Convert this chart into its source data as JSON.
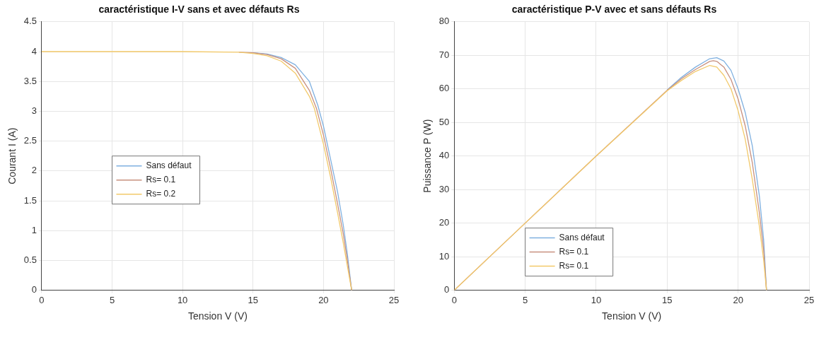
{
  "chart_data": [
    {
      "type": "line",
      "title": "caractéristique I-V sans et avec défauts Rs",
      "xlabel": "Tension V (V)",
      "ylabel": "Courant I (A)",
      "xlim": [
        0,
        25
      ],
      "xticks": [
        0,
        5,
        10,
        15,
        20,
        25
      ],
      "ylim": [
        0,
        4.5
      ],
      "yticks": [
        0,
        0.5,
        1,
        1.5,
        2,
        2.5,
        3,
        3.5,
        4,
        4.5
      ],
      "grid": true,
      "legend": "center left",
      "series": [
        {
          "name": "Sans défaut",
          "color": "#7fb0e0",
          "x": [
            15,
            16,
            17,
            18,
            19,
            19.6,
            20,
            20.5,
            21,
            21.4,
            21.7,
            22
          ],
          "values": [
            3.98,
            3.96,
            3.9,
            3.78,
            3.5,
            3.1,
            2.75,
            2.2,
            1.65,
            1.1,
            0.6,
            0
          ]
        },
        {
          "name": "Rs= 0.1",
          "color": "#c8907f",
          "x": [
            14,
            15,
            16,
            17,
            18,
            19,
            19.5,
            20,
            20.5,
            21,
            21.4,
            21.7,
            22
          ],
          "values": [
            3.99,
            3.98,
            3.95,
            3.88,
            3.72,
            3.35,
            3.05,
            2.6,
            2.05,
            1.45,
            0.95,
            0.5,
            0
          ]
        },
        {
          "name": "Rs= 0.2",
          "color": "#f2c96a",
          "x": [
            0,
            5,
            10,
            14,
            15,
            16,
            17,
            18,
            19,
            19.35,
            20,
            20.5,
            21,
            21.4,
            21.7,
            22
          ],
          "values": [
            4,
            4,
            4,
            3.99,
            3.97,
            3.93,
            3.84,
            3.64,
            3.25,
            3.05,
            2.45,
            1.9,
            1.3,
            0.8,
            0.4,
            0
          ]
        }
      ]
    },
    {
      "type": "line",
      "title": "caractéristique P-V avec et sans défauts Rs",
      "xlabel": "Tension V (V)",
      "ylabel": "Puissance P (W)",
      "xlim": [
        0,
        25
      ],
      "xticks": [
        0,
        5,
        10,
        15,
        20,
        25
      ],
      "ylim": [
        0,
        80
      ],
      "yticks": [
        0,
        10,
        20,
        30,
        40,
        50,
        60,
        70,
        80
      ],
      "grid": true,
      "legend": "bottom left",
      "series": [
        {
          "name": "Sans défaut",
          "color": "#7fb0e0",
          "x": [
            15,
            16,
            17,
            18,
            18.5,
            19,
            19.5,
            20,
            20.5,
            21,
            21.5,
            21.8,
            22
          ],
          "values": [
            59.7,
            63.4,
            66.5,
            69,
            69.3,
            68.3,
            65.5,
            60,
            53,
            43,
            28,
            15,
            0
          ]
        },
        {
          "name": "Rs= 0.1",
          "color": "#c8907f",
          "x": [
            0,
            5,
            10,
            15,
            16,
            17,
            18,
            18.25,
            18.5,
            19,
            19.5,
            20,
            20.5,
            21,
            21.5,
            21.8,
            22
          ],
          "values": [
            0,
            20,
            40,
            59.6,
            63,
            65.8,
            68.2,
            68.4,
            68.2,
            66.5,
            62.8,
            57,
            49,
            38,
            23,
            12,
            0
          ]
        },
        {
          "name": "Rs= 0.1",
          "color": "#f2c96a",
          "x": [
            0,
            5,
            10,
            15,
            16,
            17,
            18,
            18.5,
            19,
            19.5,
            20,
            20.5,
            21,
            21.5,
            21.8,
            22
          ],
          "values": [
            0,
            20,
            40,
            59.4,
            62.5,
            65.2,
            67,
            66.5,
            64,
            60,
            53.5,
            45,
            33,
            19,
            9,
            0
          ]
        }
      ]
    }
  ]
}
